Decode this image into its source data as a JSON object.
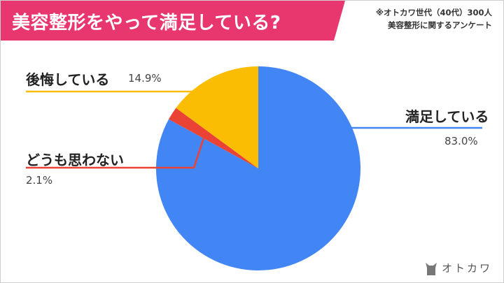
{
  "title": "美容整形をやって満足している?",
  "note": {
    "line1": "※オトカワ世代（40代）300人",
    "line2": "美容整形に関するアンケート"
  },
  "colors": {
    "title_bg": "#e8366f",
    "satisfied": "#4285f4",
    "neutral": "#ea4335",
    "regret": "#fbbc04"
  },
  "brand": {
    "name": "オトカワ",
    "icon": "cat-icon"
  },
  "chart_data": {
    "type": "pie",
    "slices": [
      {
        "label": "満足している",
        "value": 83.0,
        "value_text": "83.0%",
        "color": "#4285f4"
      },
      {
        "label": "どうも思わない",
        "value": 2.1,
        "value_text": "2.1%",
        "color": "#ea4335"
      },
      {
        "label": "後悔している",
        "value": 14.9,
        "value_text": "14.9%",
        "color": "#fbbc04"
      }
    ],
    "start": "12 o'clock",
    "direction": "clockwise"
  }
}
